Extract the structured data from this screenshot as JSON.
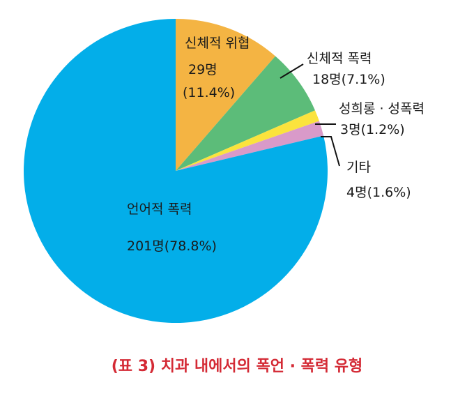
{
  "chart_data": {
    "type": "pie",
    "title": "(표 3)  치과 내에서의 폭언 · 폭력 유형",
    "slices": [
      {
        "label": "신체적 위협",
        "count_text": "29명",
        "percent_text": "(11.4%)",
        "value": 11.4,
        "color": "#f4b443"
      },
      {
        "label": "신체적 폭력",
        "count_text": "18명(7.1%)",
        "value": 7.1,
        "color": "#5cbc79"
      },
      {
        "label": "성희롱 · 성폭력",
        "count_text": "3명(1.2%)",
        "value": 1.2,
        "color": "#fbe33d"
      },
      {
        "label": "기타",
        "count_text": "4명(1.6%)",
        "value": 1.6,
        "color": "#d99ac9"
      },
      {
        "label": "언어적 폭력",
        "count_text": "201명(78.8%)",
        "value": 78.8,
        "color": "#03aee9"
      }
    ]
  }
}
